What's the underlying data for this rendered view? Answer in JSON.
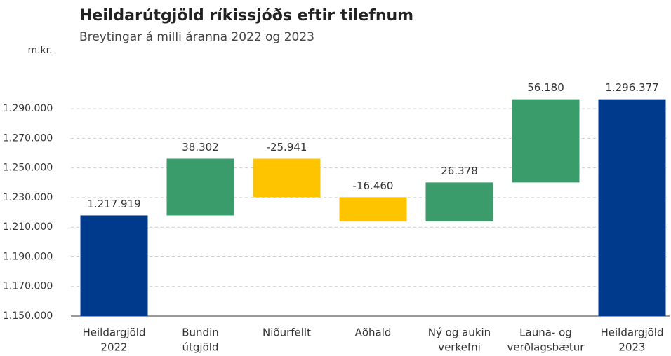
{
  "chart_data": {
    "type": "waterfall",
    "title": "Heildarútgjöld ríkissjóðs eftir tilefnum",
    "subtitle": "Breytingar á milli áranna 2022 og 2023",
    "y_label": "m.kr.",
    "categories": [
      [
        "Heildargjöld",
        "2022"
      ],
      [
        "Bundin",
        "útgjöld"
      ],
      [
        "Niðurfellt"
      ],
      [
        "Aðhald"
      ],
      [
        "Ný og aukin",
        "verkefni"
      ],
      [
        "Launa- og",
        "verðlagsbætur"
      ],
      [
        "Heildargjöld",
        "2023"
      ]
    ],
    "measure": [
      "absolute",
      "relative",
      "relative",
      "relative",
      "relative",
      "relative",
      "absolute"
    ],
    "values": [
      1217919,
      38302,
      -25941,
      -16460,
      26378,
      56180,
      1296377
    ],
    "value_labels": [
      "1.217.919",
      "38.302",
      "-25.941",
      "-16.460",
      "26.378",
      "56.180",
      "1.296.377"
    ],
    "colors": {
      "absolute": "#003a8c",
      "increase": "#3a9b6b",
      "decrease": "#ffc400"
    },
    "ylim": [
      1150000,
      1300000
    ],
    "yticks": [
      {
        "value": 1150000,
        "label": "1.150.000"
      },
      {
        "value": 1170000,
        "label": "1.170.000"
      },
      {
        "value": 1190000,
        "label": "1.190.000"
      },
      {
        "value": 1210000,
        "label": "1.210.000"
      },
      {
        "value": 1230000,
        "label": "1.230.000"
      },
      {
        "value": 1250000,
        "label": "1.250.000"
      },
      {
        "value": 1270000,
        "label": "1.270.000"
      },
      {
        "value": 1290000,
        "label": "1.290.000"
      }
    ],
    "grid": true
  }
}
